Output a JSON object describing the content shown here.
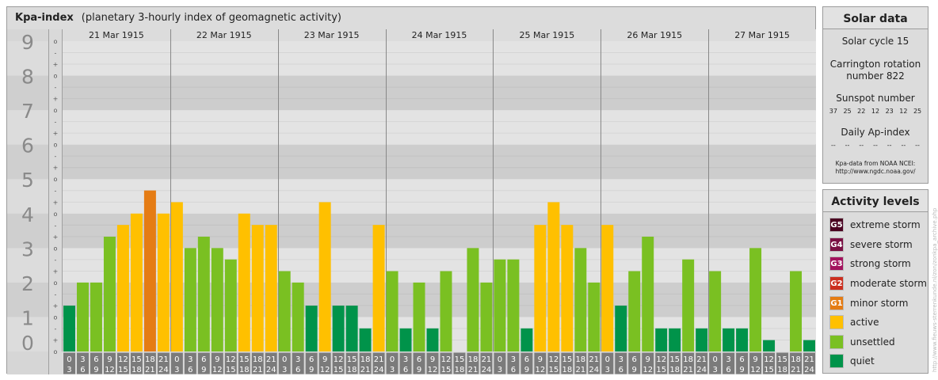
{
  "header": {
    "title": "Kpa-index",
    "subtitle": "(planetary 3-hourly index of geomagnetic activity)"
  },
  "chart_data": {
    "type": "bar",
    "title": "Kpa-index",
    "subtitle": "(planetary 3-hourly index of geomagnetic activity)",
    "ylim": [
      0,
      9
    ],
    "y_ticks": [
      "0",
      "1",
      "2",
      "3",
      "4",
      "5",
      "6",
      "7",
      "8",
      "9"
    ],
    "sub_ticks": [
      "+",
      "o",
      "-"
    ],
    "days": [
      "21 Mar 1915",
      "22 Mar 1915",
      "23 Mar 1915",
      "24 Mar 1915",
      "25 Mar 1915",
      "26 Mar 1915",
      "27 Mar 1915"
    ],
    "interval_top": [
      "0",
      "3",
      "6",
      "9",
      "12",
      "15",
      "18",
      "21"
    ],
    "interval_bottom": [
      "3",
      "6",
      "9",
      "12",
      "15",
      "18",
      "21",
      "24"
    ],
    "values": [
      1.33,
      2.0,
      2.0,
      3.33,
      3.67,
      4.0,
      4.67,
      4.0,
      4.33,
      3.0,
      3.33,
      3.0,
      2.67,
      4.0,
      3.67,
      3.67,
      2.33,
      2.0,
      1.33,
      4.33,
      1.33,
      1.33,
      0.67,
      3.67,
      2.33,
      0.67,
      2.0,
      0.67,
      2.33,
      0.0,
      3.0,
      2.0,
      2.67,
      2.67,
      0.67,
      3.67,
      4.33,
      3.67,
      3.0,
      2.0,
      3.67,
      1.33,
      2.33,
      3.33,
      0.67,
      0.67,
      2.67,
      0.67,
      2.33,
      0.67,
      0.67,
      3.0,
      0.33,
      0.0,
      2.33,
      0.33
    ],
    "colors": {
      "quiet": "#00934a",
      "unsettled": "#7ac022",
      "active": "#ffc000",
      "minor": "#e57c14"
    }
  },
  "solar": {
    "title": "Solar data",
    "cycle": "Solar cycle 15",
    "carrington_1": "Carrington rotation",
    "carrington_2": "number 822",
    "sunspot_title": "Sunspot number",
    "sunspots": [
      "37",
      "25",
      "22",
      "12",
      "23",
      "12",
      "25"
    ],
    "ap_title": "Daily Ap-index",
    "ap_values": [
      "--",
      "--",
      "--",
      "--",
      "--",
      "--",
      "--"
    ],
    "credit_1": "Kpa-data from NOAA NCEI:",
    "credit_2": "http://www.ngdc.noaa.gov/"
  },
  "activity": {
    "title": "Activity levels",
    "levels": [
      {
        "badge": "G5",
        "label": "extreme storm",
        "color": "#4a0021"
      },
      {
        "badge": "G4",
        "label": "severe storm",
        "color": "#7a0f43"
      },
      {
        "badge": "G3",
        "label": "strong storm",
        "color": "#a3135e"
      },
      {
        "badge": "G2",
        "label": "moderate storm",
        "color": "#cc2f1f"
      },
      {
        "badge": "G1",
        "label": "minor storm",
        "color": "#e57c14"
      },
      {
        "badge": "",
        "label": "active",
        "color": "#ffc000"
      },
      {
        "badge": "",
        "label": "unsettled",
        "color": "#7ac022"
      },
      {
        "badge": "",
        "label": "quiet",
        "color": "#00934a"
      }
    ]
  },
  "watermark": "http://www.fieuws-sterrenkunde.nl/zon/zonkpa_archive.php"
}
